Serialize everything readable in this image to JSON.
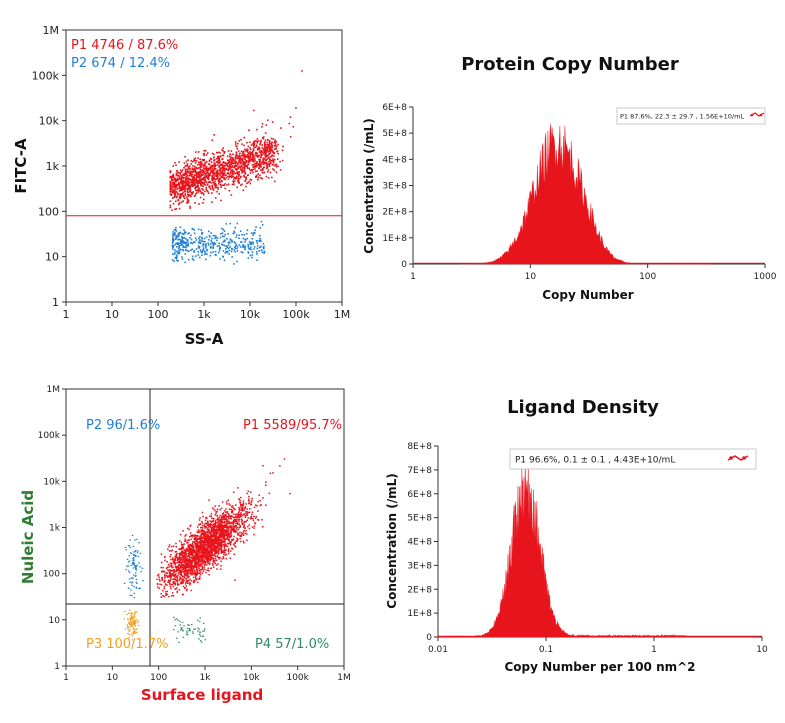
{
  "colors": {
    "red": "#e8141c",
    "blue": "#1f7fd6",
    "orange": "#f0a020",
    "green": "#2e8a6a",
    "axis_green": "#2e7d32",
    "axis_red": "#e8141c"
  },
  "chart_data": [
    {
      "id": "scatter1",
      "type": "scatter",
      "xlabel": "SS-A",
      "ylabel": "FITC-A",
      "xscale": "log",
      "yscale": "log",
      "xlim": [
        1,
        1000000
      ],
      "ylim": [
        1,
        1000000
      ],
      "x_tick_labels": [
        "1",
        "10",
        "100",
        "1k",
        "10k",
        "100k",
        "1M"
      ],
      "y_tick_labels": [
        "1",
        "10",
        "100",
        "1k",
        "10k",
        "100k",
        "1M"
      ],
      "threshold_y": 80,
      "gates": [
        {
          "name": "P1",
          "label": "P1  4746 / 87.6%",
          "count": 4746,
          "percent": 87.6,
          "color": "red"
        },
        {
          "name": "P2",
          "label": "P2  674 / 12.4%",
          "count": 674,
          "percent": 12.4,
          "color": "blue"
        }
      ]
    },
    {
      "id": "hist1",
      "type": "area",
      "title": "Protein Copy Number",
      "xlabel": "Copy Number",
      "ylabel": "Concentration (/mL)",
      "xscale": "log",
      "xlim": [
        1,
        1000
      ],
      "ylim": [
        0,
        600000000.0
      ],
      "x_tick_labels": [
        "1",
        "10",
        "100",
        "1000"
      ],
      "y_tick_labels": [
        "0",
        "1E+8",
        "2E+8",
        "3E+8",
        "4E+8",
        "5E+8",
        "6E+8"
      ],
      "legend": "P1  87.6%,  22.3 ± 29.7 ,  1.56E+10/mL",
      "peak_x": 17,
      "peak_y": 500000000.0,
      "mean": 22.3,
      "sd": 29.7,
      "concentration": "1.56E+10/mL"
    },
    {
      "id": "scatter2",
      "type": "scatter",
      "xlabel": "Surface ligand",
      "ylabel": "Nuleic Acid",
      "xscale": "log",
      "yscale": "log",
      "xlim": [
        1,
        1000000
      ],
      "ylim": [
        1,
        1000000
      ],
      "x_tick_labels": [
        "1",
        "10",
        "100",
        "1k",
        "10k",
        "100k",
        "1M"
      ],
      "y_tick_labels": [
        "1",
        "10",
        "100",
        "1k",
        "10k",
        "100k",
        "1M"
      ],
      "quadrant_x": 65,
      "quadrant_y": 22,
      "gates": [
        {
          "name": "P1",
          "label": "P1 5589/95.7%",
          "count": 5589,
          "percent": 95.7,
          "color": "red"
        },
        {
          "name": "P2",
          "label": "P2 96/1.6%",
          "count": 96,
          "percent": 1.6,
          "color": "blue"
        },
        {
          "name": "P3",
          "label": "P3 100/1.7%",
          "count": 100,
          "percent": 1.7,
          "color": "orange"
        },
        {
          "name": "P4",
          "label": "P4 57/1.0%",
          "count": 57,
          "percent": 1.0,
          "color": "green"
        }
      ]
    },
    {
      "id": "hist2",
      "type": "area",
      "title": "Ligand Density",
      "xlabel": "Copy Number per 100 nm^2",
      "ylabel": "Concentration (/mL)",
      "xscale": "log",
      "xlim": [
        0.01,
        10
      ],
      "ylim": [
        0,
        800000000.0
      ],
      "x_tick_labels": [
        "0.01",
        "0.1",
        "1",
        "10"
      ],
      "y_tick_labels": [
        "0",
        "1E+8",
        "2E+8",
        "3E+8",
        "4E+8",
        "5E+8",
        "6E+8",
        "7E+8",
        "8E+8"
      ],
      "legend": "P1  96.6%,  0.1 ± 0.1 ,  4.43E+10/mL",
      "peak_x": 0.065,
      "peak_y": 680000000.0,
      "mean": 0.1,
      "sd": 0.1,
      "concentration": "4.43E+10/mL"
    }
  ]
}
